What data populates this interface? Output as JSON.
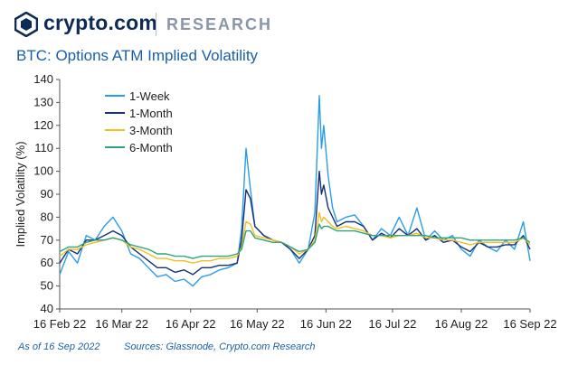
{
  "header": {
    "brand": "crypto.com",
    "section": "RESEARCH"
  },
  "colors": {
    "brand": "#0d2b56",
    "title": "#1a5fa6",
    "axis": "#555555"
  },
  "chart_data": {
    "type": "line",
    "title": "BTC: Options ATM Implied Volatility",
    "ylabel": "Implied Volatility (%)",
    "xlabel": "",
    "ylim": [
      40,
      140
    ],
    "yticks": [
      40,
      50,
      60,
      70,
      80,
      90,
      100,
      110,
      120,
      130,
      140
    ],
    "xlim": [
      "2022-02-16",
      "2022-09-16"
    ],
    "xticks": [
      {
        "date": "2022-02-16",
        "label": "16 Feb 22"
      },
      {
        "date": "2022-03-16",
        "label": "16 Mar 22"
      },
      {
        "date": "2022-04-16",
        "label": "16 Apr 22"
      },
      {
        "date": "2022-05-16",
        "label": "16 May 22"
      },
      {
        "date": "2022-06-16",
        "label": "16 Jun 22"
      },
      {
        "date": "2022-07-16",
        "label": "16 Jul 22"
      },
      {
        "date": "2022-08-16",
        "label": "16 Aug 22"
      },
      {
        "date": "2022-09-16",
        "label": "16 Sep 22"
      }
    ],
    "grid": false,
    "legend_position": "top-left",
    "x": [
      "2022-02-16",
      "2022-02-20",
      "2022-02-24",
      "2022-02-28",
      "2022-03-04",
      "2022-03-08",
      "2022-03-12",
      "2022-03-16",
      "2022-03-20",
      "2022-03-24",
      "2022-03-28",
      "2022-04-01",
      "2022-04-05",
      "2022-04-09",
      "2022-04-13",
      "2022-04-17",
      "2022-04-21",
      "2022-04-25",
      "2022-04-29",
      "2022-05-03",
      "2022-05-07",
      "2022-05-09",
      "2022-05-11",
      "2022-05-13",
      "2022-05-15",
      "2022-05-19",
      "2022-05-23",
      "2022-05-27",
      "2022-05-31",
      "2022-06-04",
      "2022-06-08",
      "2022-06-11",
      "2022-06-13",
      "2022-06-14",
      "2022-06-15",
      "2022-06-17",
      "2022-06-19",
      "2022-06-21",
      "2022-06-25",
      "2022-06-29",
      "2022-07-03",
      "2022-07-07",
      "2022-07-11",
      "2022-07-15",
      "2022-07-19",
      "2022-07-23",
      "2022-07-27",
      "2022-07-31",
      "2022-08-04",
      "2022-08-08",
      "2022-08-12",
      "2022-08-16",
      "2022-08-20",
      "2022-08-24",
      "2022-08-28",
      "2022-09-01",
      "2022-09-05",
      "2022-09-09",
      "2022-09-13",
      "2022-09-16"
    ],
    "series": [
      {
        "name": "1-Week",
        "color": "#2a9de6",
        "values": [
          55,
          65,
          60,
          72,
          70,
          76,
          80,
          74,
          64,
          62,
          58,
          54,
          55,
          52,
          53,
          50,
          54,
          55,
          57,
          58,
          60,
          75,
          110,
          92,
          76,
          72,
          70,
          69,
          66,
          60,
          66,
          82,
          133,
          110,
          120,
          98,
          84,
          78,
          80,
          81,
          76,
          70,
          75,
          72,
          80,
          72,
          84,
          70,
          74,
          70,
          72,
          66,
          63,
          70,
          67,
          65,
          70,
          66,
          78,
          61
        ]
      },
      {
        "name": "1-Month",
        "color": "#16307a",
        "values": [
          60,
          66,
          64,
          70,
          70,
          72,
          74,
          72,
          67,
          64,
          61,
          58,
          58,
          56,
          57,
          55,
          58,
          58,
          59,
          59,
          60,
          70,
          92,
          88,
          76,
          72,
          70,
          69,
          66,
          62,
          66,
          72,
          100,
          90,
          94,
          84,
          80,
          76,
          78,
          78,
          76,
          70,
          73,
          71,
          75,
          72,
          75,
          70,
          72,
          69,
          70,
          67,
          65,
          69,
          67,
          67,
          68,
          68,
          72,
          66
        ]
      },
      {
        "name": "3-Month",
        "color": "#f2c01e",
        "values": [
          63,
          66,
          66,
          68,
          69,
          70,
          71,
          70,
          67,
          66,
          64,
          62,
          62,
          61,
          61,
          60,
          61,
          61,
          62,
          62,
          63,
          67,
          78,
          77,
          72,
          71,
          70,
          69,
          67,
          64,
          66,
          70,
          82,
          78,
          80,
          78,
          76,
          75,
          76,
          75,
          74,
          72,
          72,
          71,
          72,
          72,
          73,
          71,
          71,
          70,
          70,
          69,
          68,
          69,
          69,
          69,
          69,
          69,
          71,
          68
        ]
      },
      {
        "name": "6-Month",
        "color": "#2ea37e",
        "values": [
          65,
          67,
          67,
          69,
          70,
          70,
          71,
          70,
          68,
          67,
          66,
          64,
          64,
          63,
          63,
          62,
          63,
          63,
          63,
          63,
          64,
          66,
          74,
          74,
          71,
          70,
          69,
          69,
          67,
          65,
          66,
          69,
          77,
          75,
          76,
          76,
          75,
          74,
          74,
          74,
          73,
          72,
          72,
          72,
          72,
          72,
          72,
          72,
          71,
          71,
          71,
          71,
          70,
          70,
          70,
          70,
          70,
          70,
          71,
          69
        ]
      }
    ]
  },
  "footer": {
    "asof": "As of 16 Sep 2022",
    "sources": "Sources: Glassnode, Crypto.com Research"
  }
}
